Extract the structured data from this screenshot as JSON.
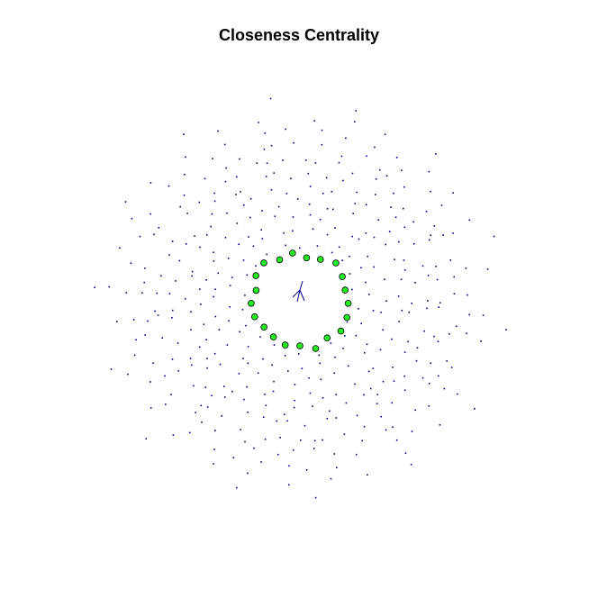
{
  "title": "Closeness Centrality",
  "colors": {
    "background": "#ffffff",
    "small_node": "#00008b",
    "edge": "#00008b",
    "central_node_fill": "#22ee22",
    "central_node_stroke": "#000000"
  },
  "network": {
    "layout": "radial",
    "central_ring_node_count": 21,
    "highlighted_by": "closeness centrality"
  }
}
